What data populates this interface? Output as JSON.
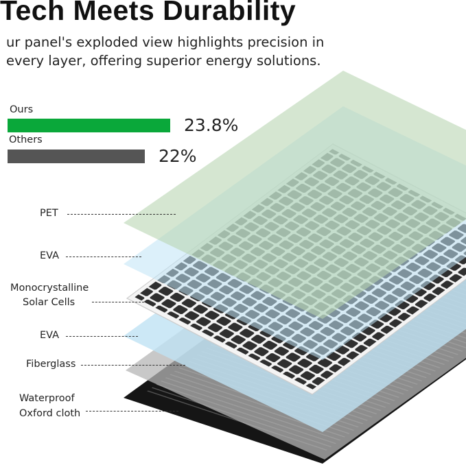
{
  "title": "Tech Meets Durability",
  "subtitle": "ur panel's exploded view highlights precision in every layer, offering superior energy solutions.",
  "comparison": {
    "items": [
      {
        "label": "Ours",
        "value": 23.8,
        "display": "23.8%",
        "color": "#0aa83a"
      },
      {
        "label": "Others",
        "value": 22,
        "display": "22%",
        "color": "#555555"
      }
    ]
  },
  "layers": [
    {
      "label": "PET",
      "color": "#c9dfc4"
    },
    {
      "label": "EVA",
      "color": "#cfe9f6"
    },
    {
      "label_line1": "Monocrystalline",
      "label_line2": "Solar Cells",
      "color": "#3a3a3a"
    },
    {
      "label": "EVA",
      "color": "#bfe2f4"
    },
    {
      "label": "Fiberglass",
      "color": "#b5b5b5"
    },
    {
      "label_line1": "Waterproof",
      "label_line2": "Oxford cloth",
      "color": "#151515"
    }
  ]
}
